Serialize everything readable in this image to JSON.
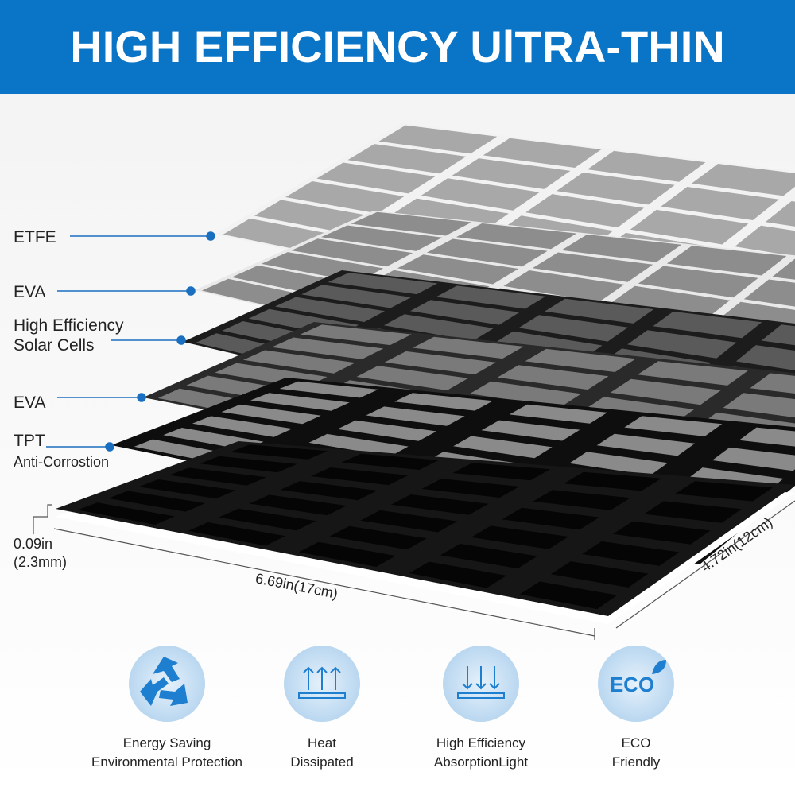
{
  "header": {
    "title": "HIGH EFFICIENCY UlTRA-THIN"
  },
  "layers": [
    {
      "lines": [
        "ETFE"
      ]
    },
    {
      "lines": [
        "EVA"
      ]
    },
    {
      "lines": [
        "High Efficiency",
        "Solar Cells"
      ]
    },
    {
      "lines": [
        "EVA"
      ]
    },
    {
      "lines": [
        "TPT",
        "Anti-Corrostion"
      ]
    }
  ],
  "dimensions": {
    "thickness": [
      "0.09in",
      "(2.3mm)"
    ],
    "length": "6.69in(17cm)",
    "width": "4.72in(12cm)"
  },
  "features": [
    {
      "icon": "",
      "lines": [
        "Energy Saving",
        "Environmental Protection"
      ]
    },
    {
      "lines": [
        "Heat",
        "Dissipated"
      ]
    },
    {
      "lines": [
        "High Efficiency",
        "AbsorptionLight"
      ]
    },
    {
      "icon": "ECO",
      "lines": [
        "ECO",
        "Friendly"
      ]
    }
  ]
}
